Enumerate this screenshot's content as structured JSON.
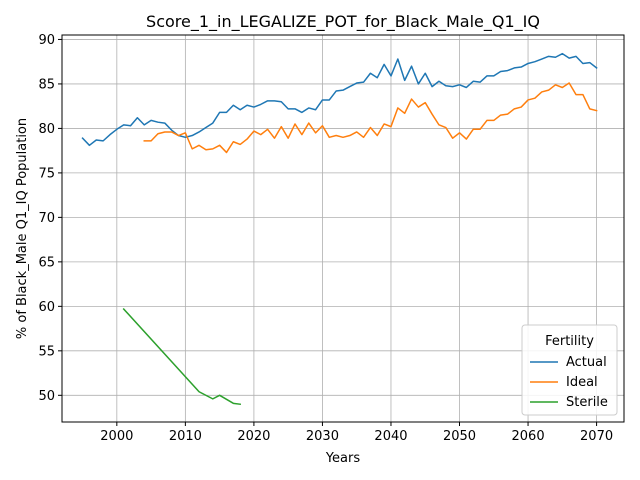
{
  "chart_data": {
    "type": "line",
    "title": "Score_1_in_LEGALIZE_POT_for_Black_Male_Q1_IQ",
    "xlabel": "Years",
    "ylabel": "% of Black_Male Q1_IQ Population",
    "xlim": [
      1992,
      2074
    ],
    "ylim": [
      47,
      90.5
    ],
    "xticks": [
      2000,
      2010,
      2020,
      2030,
      2040,
      2050,
      2060,
      2070
    ],
    "yticks": [
      50,
      55,
      60,
      65,
      70,
      75,
      80,
      85,
      90
    ],
    "grid": true,
    "legend": {
      "title": "Fertility",
      "position": "lower-right"
    },
    "series": [
      {
        "name": "Actual",
        "color": "#1f77b4",
        "x": [
          1995,
          1996,
          1997,
          1998,
          1999,
          2000,
          2001,
          2002,
          2003,
          2004,
          2005,
          2006,
          2007,
          2008,
          2009,
          2010,
          2011,
          2012,
          2013,
          2014,
          2015,
          2016,
          2017,
          2018,
          2019,
          2020,
          2021,
          2022,
          2023,
          2024,
          2025,
          2026,
          2027,
          2028,
          2029,
          2030,
          2031,
          2032,
          2033,
          2034,
          2035,
          2036,
          2037,
          2038,
          2039,
          2040,
          2041,
          2042,
          2043,
          2044,
          2045,
          2046,
          2047,
          2048,
          2049,
          2050,
          2051,
          2052,
          2053,
          2054,
          2055,
          2056,
          2057,
          2058,
          2059,
          2060,
          2061,
          2062,
          2063,
          2064,
          2065,
          2066,
          2067,
          2068,
          2069,
          2070
        ],
        "y": [
          78.9,
          78.1,
          78.7,
          78.6,
          79.3,
          79.9,
          80.4,
          80.3,
          81.2,
          80.4,
          80.9,
          80.7,
          80.6,
          79.8,
          79.2,
          79.0,
          79.2,
          79.6,
          80.1,
          80.6,
          81.8,
          81.8,
          82.6,
          82.1,
          82.6,
          82.4,
          82.7,
          83.1,
          83.1,
          83.0,
          82.2,
          82.2,
          81.8,
          82.3,
          82.1,
          83.2,
          83.2,
          84.2,
          84.3,
          84.7,
          85.1,
          85.2,
          86.2,
          85.7,
          87.2,
          85.9,
          87.8,
          85.4,
          87.0,
          85.0,
          86.2,
          84.7,
          85.3,
          84.8,
          84.7,
          84.9,
          84.6,
          85.3,
          85.2,
          85.9,
          85.9,
          86.4,
          86.5,
          86.8,
          86.9,
          87.3,
          87.5,
          87.8,
          88.1,
          88.0,
          88.4,
          87.9,
          88.1,
          87.3,
          87.4,
          86.8
        ]
      },
      {
        "name": "Ideal",
        "color": "#ff7f0e",
        "x": [
          2004,
          2005,
          2006,
          2007,
          2008,
          2009,
          2010,
          2011,
          2012,
          2013,
          2014,
          2015,
          2016,
          2017,
          2018,
          2019,
          2020,
          2021,
          2022,
          2023,
          2024,
          2025,
          2026,
          2027,
          2028,
          2029,
          2030,
          2031,
          2032,
          2033,
          2034,
          2035,
          2036,
          2037,
          2038,
          2039,
          2040,
          2041,
          2042,
          2043,
          2044,
          2045,
          2046,
          2047,
          2048,
          2049,
          2050,
          2051,
          2052,
          2053,
          2054,
          2055,
          2056,
          2057,
          2058,
          2059,
          2060,
          2061,
          2062,
          2063,
          2064,
          2065,
          2066,
          2067,
          2068,
          2069,
          2070
        ],
        "y": [
          78.6,
          78.6,
          79.4,
          79.6,
          79.6,
          79.2,
          79.5,
          77.7,
          78.1,
          77.6,
          77.7,
          78.1,
          77.3,
          78.5,
          78.2,
          78.8,
          79.7,
          79.3,
          79.9,
          78.9,
          80.2,
          78.9,
          80.5,
          79.3,
          80.6,
          79.5,
          80.3,
          79.0,
          79.2,
          79.0,
          79.2,
          79.6,
          79.0,
          80.1,
          79.2,
          80.5,
          80.2,
          82.3,
          81.7,
          83.3,
          82.4,
          82.9,
          81.6,
          80.4,
          80.1,
          78.9,
          79.5,
          78.8,
          79.9,
          79.9,
          80.9,
          80.9,
          81.5,
          81.6,
          82.2,
          82.4,
          83.2,
          83.4,
          84.1,
          84.3,
          84.9,
          84.6,
          85.1,
          83.8,
          83.8,
          82.2,
          82.0
        ]
      },
      {
        "name": "Sterile",
        "color": "#2ca02c",
        "x": [
          2001,
          2012,
          2014,
          2015,
          2017,
          2018
        ],
        "y": [
          59.7,
          50.4,
          49.6,
          50.0,
          49.1,
          49.0
        ]
      }
    ]
  }
}
